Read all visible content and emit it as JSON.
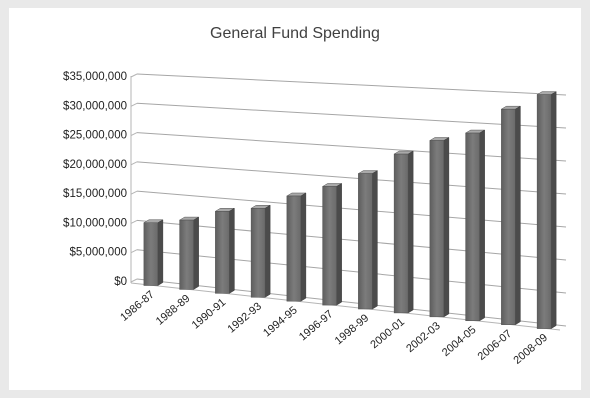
{
  "chart_data": {
    "type": "bar",
    "title": "General Fund Spending",
    "xlabel": "",
    "ylabel": "",
    "ylim": [
      0,
      35000000
    ],
    "yticks": [
      0,
      5000000,
      10000000,
      15000000,
      20000000,
      25000000,
      30000000,
      35000000
    ],
    "ytick_labels": [
      "$0",
      "$5,000,000",
      "$10,000,000",
      "$15,000,000",
      "$20,000,000",
      "$25,000,000",
      "$30,000,000",
      "$35,000,000"
    ],
    "categories": [
      "1986-87",
      "1988-89",
      "1990-91",
      "1992-93",
      "1994-95",
      "1996-97",
      "1998-99",
      "2000-01",
      "2002-03",
      "2004-05",
      "2006-07",
      "2008-09"
    ],
    "values": [
      10500000,
      11500000,
      13500000,
      14500000,
      17000000,
      19000000,
      21500000,
      25000000,
      27500000,
      29000000,
      33000000,
      35500000
    ],
    "grid": true,
    "legend": "none",
    "bar_color": "#7a7a7a"
  }
}
